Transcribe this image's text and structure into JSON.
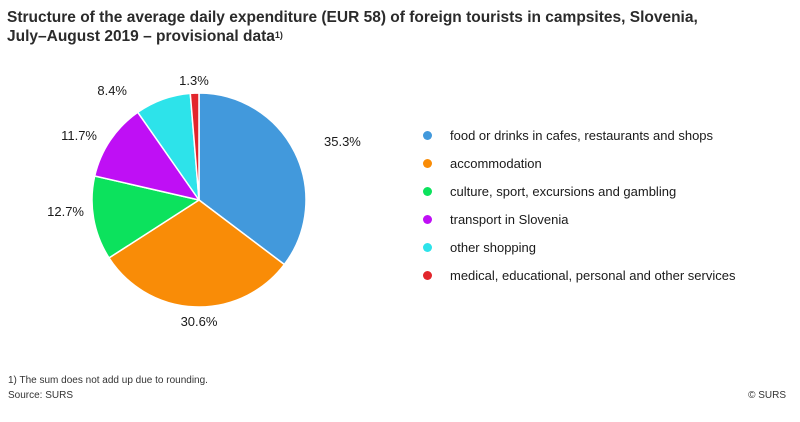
{
  "title": {
    "line1": "Structure of the average daily expenditure (EUR 58) of foreign tourists in campsites, Slovenia,",
    "line2": "July–August 2019 – provisional data",
    "note_marker": "1)"
  },
  "chart_data": {
    "type": "pie",
    "title": "Structure of the average daily expenditure (EUR 58) of foreign tourists in campsites, Slovenia, July–August 2019 – provisional data",
    "categories": [
      "food or drinks in cafes, restaurants and shops",
      "accommodation",
      "culture, sport, excursions and gambling",
      "transport in Slovenia",
      "other shopping",
      "medical, educational, personal and other services"
    ],
    "values": [
      35.3,
      30.6,
      12.7,
      11.7,
      8.4,
      1.3
    ],
    "labels": [
      "35.3%",
      "30.6%",
      "12.7%",
      "11.7%",
      "8.4%",
      "1.3%"
    ],
    "colors": [
      "#4299DC",
      "#F98C07",
      "#0CE25D",
      "#BF0FF5",
      "#2DE3EA",
      "#E2262C"
    ],
    "start": "12 o'clock, clockwise",
    "legend_position": "right"
  },
  "footnote": "1) The sum does not add up due to rounding.",
  "source": "Source: SURS",
  "copyright": "© SURS"
}
